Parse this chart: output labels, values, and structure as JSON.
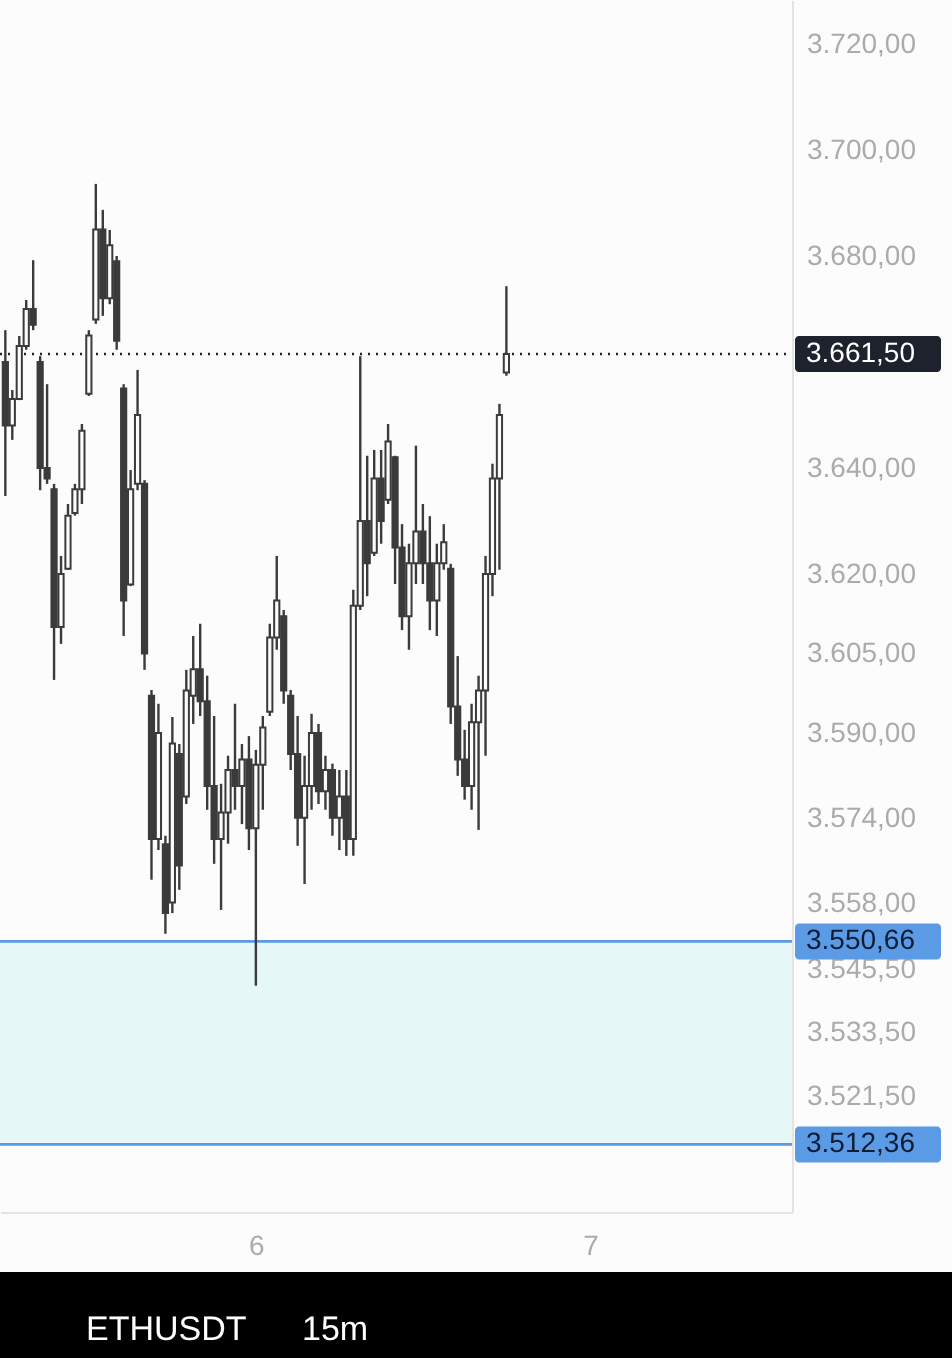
{
  "chart_data": {
    "type": "candlestick",
    "title": "ETHUSDT",
    "subtitle": "15m",
    "color": "#3b3b3b",
    "x": [
      5.25,
      5.2708,
      5.2917,
      5.3125,
      5.3333,
      5.3542,
      5.375,
      5.3958,
      5.4167,
      5.4375,
      5.4583,
      5.4792,
      5.5,
      5.5208,
      5.5417,
      5.5625,
      5.5833,
      5.6042,
      5.625,
      5.6458,
      5.6667,
      5.6875,
      5.7083,
      5.7292,
      5.75,
      5.7708,
      5.7917,
      5.8125,
      5.8333,
      5.8542,
      5.875,
      5.8958,
      5.9167,
      5.9375,
      5.9583,
      5.9792,
      6.0,
      6.0208,
      6.0417,
      6.0625,
      6.0833,
      6.1042,
      6.125,
      6.1458,
      6.1667,
      6.1875,
      6.2083,
      6.2292,
      6.25,
      6.2708,
      6.2917,
      6.3125,
      6.3333,
      6.3542,
      6.375,
      6.3958,
      6.4167,
      6.4375,
      6.4583,
      6.4792,
      6.5,
      6.5208,
      6.5417,
      6.5625,
      6.5833,
      6.6042,
      6.625,
      6.6458,
      6.6667,
      6.6875,
      6.7083,
      6.7292,
      6.75
    ],
    "ohlc": [
      [
        3660,
        3666.0,
        3634.7,
        3648
      ],
      [
        3648,
        3654.7,
        3645.3,
        3653
      ],
      [
        3653,
        3664.9,
        3652.8,
        3663
      ],
      [
        3663,
        3671.7,
        3662.3,
        3670
      ],
      [
        3670,
        3679.2,
        3666.0,
        3667
      ],
      [
        3660,
        3661.1,
        3635.8,
        3640
      ],
      [
        3640,
        3655.8,
        3637.0,
        3638
      ],
      [
        3636,
        3637.0,
        3600.0,
        3610
      ],
      [
        3610,
        3623.4,
        3606.8,
        3620
      ],
      [
        3621,
        3633.2,
        3620.8,
        3631
      ],
      [
        3631.5,
        3637.0,
        3631.0,
        3636
      ],
      [
        3636,
        3648.3,
        3633.2,
        3647
      ],
      [
        3654,
        3666.0,
        3653.6,
        3665
      ],
      [
        3668,
        3693.6,
        3667.2,
        3685
      ],
      [
        3685,
        3688.7,
        3668.7,
        3672
      ],
      [
        3672,
        3684.9,
        3670.9,
        3682
      ],
      [
        3679,
        3680.0,
        3662.3,
        3664
      ],
      [
        3655,
        3655.8,
        3608.3,
        3615
      ],
      [
        3618,
        3639.6,
        3617.7,
        3636
      ],
      [
        3637,
        3658.5,
        3635.8,
        3650
      ],
      [
        3637,
        3637.7,
        3601.9,
        3605
      ],
      [
        3597,
        3598.1,
        3562.3,
        3570
      ],
      [
        3570,
        3595.5,
        3567.9,
        3590
      ],
      [
        3569,
        3570.6,
        3552.1,
        3556
      ],
      [
        3558,
        3593.0,
        3556.0,
        3588
      ],
      [
        3586,
        3587.9,
        3560.4,
        3565
      ],
      [
        3578,
        3601.9,
        3576.6,
        3598
      ],
      [
        3597,
        3608.3,
        3591.7,
        3602
      ],
      [
        3602,
        3610.6,
        3593.2,
        3596
      ],
      [
        3596,
        3600.8,
        3575.5,
        3580
      ],
      [
        3580,
        3593.2,
        3565.3,
        3570
      ],
      [
        3570,
        3580.4,
        3556.6,
        3575
      ],
      [
        3575,
        3585.7,
        3569.1,
        3583
      ],
      [
        3583,
        3595.5,
        3575.5,
        3580
      ],
      [
        3580,
        3587.9,
        3572.8,
        3585
      ],
      [
        3585,
        3589.4,
        3567.9,
        3572
      ],
      [
        3572,
        3586.8,
        3542.3,
        3584
      ],
      [
        3584,
        3593.2,
        3575.5,
        3591
      ],
      [
        3594,
        3610.6,
        3593.2,
        3608
      ],
      [
        3608,
        3623.4,
        3605.7,
        3615
      ],
      [
        3612,
        3613.2,
        3595.5,
        3598
      ],
      [
        3597,
        3598.1,
        3583.0,
        3586
      ],
      [
        3586,
        3593.2,
        3568.7,
        3574
      ],
      [
        3574,
        3585.7,
        3561.5,
        3580
      ],
      [
        3580,
        3593.6,
        3575.5,
        3590
      ],
      [
        3590,
        3591.7,
        3576.6,
        3579
      ],
      [
        3579,
        3585.7,
        3575.5,
        3583
      ],
      [
        3583,
        3584.2,
        3570.6,
        3574
      ],
      [
        3574,
        3583.0,
        3567.9,
        3578
      ],
      [
        3578,
        3583.0,
        3566.8,
        3570
      ],
      [
        3570,
        3617.0,
        3566.8,
        3614
      ],
      [
        3614,
        3661.1,
        3613.2,
        3630
      ],
      [
        3630,
        3642.3,
        3615.8,
        3622
      ],
      [
        3624,
        3643.4,
        3623.4,
        3638
      ],
      [
        3638,
        3643.4,
        3625.7,
        3630
      ],
      [
        3634,
        3648.3,
        3633.2,
        3645
      ],
      [
        3642,
        3642.3,
        3618.1,
        3625
      ],
      [
        3625,
        3629.4,
        3609.4,
        3612
      ],
      [
        3612,
        3625.7,
        3605.7,
        3622
      ],
      [
        3622,
        3644.2,
        3618.1,
        3628
      ],
      [
        3628,
        3633.2,
        3618.1,
        3622
      ],
      [
        3622,
        3630.9,
        3609.4,
        3615
      ],
      [
        3615,
        3625.7,
        3608.3,
        3622
      ],
      [
        3622,
        3629.4,
        3620.8,
        3626
      ],
      [
        3621,
        3621.9,
        3591.7,
        3595
      ],
      [
        3595,
        3604.5,
        3581.9,
        3585
      ],
      [
        3585,
        3590.6,
        3577.4,
        3580
      ],
      [
        3580,
        3595.5,
        3575.5,
        3592
      ],
      [
        3592,
        3600.8,
        3571.7,
        3598
      ],
      [
        3598,
        3623.4,
        3585.7,
        3620
      ],
      [
        3620,
        3640.8,
        3615.8,
        3638
      ],
      [
        3638,
        3652.1,
        3620.8,
        3650
      ],
      [
        3658,
        3674.3,
        3657.4,
        3661.5
      ]
    ],
    "xlim": [
      5.234,
      7.605
    ],
    "xticks": [
      6,
      7
    ],
    "ylim": [
      3499.6,
      3728.3
    ],
    "yticks": [
      {
        "value": 3720,
        "label": "3.720,00"
      },
      {
        "value": 3700,
        "label": "3.700,00"
      },
      {
        "value": 3680,
        "label": "3.680,00"
      },
      {
        "value": 3640,
        "label": "3.640,00"
      },
      {
        "value": 3620,
        "label": "3.620,00"
      },
      {
        "value": 3605,
        "label": "3.605,00"
      },
      {
        "value": 3590,
        "label": "3.590,00"
      },
      {
        "value": 3574,
        "label": "3.574,00"
      },
      {
        "value": 3558,
        "label": "3.558,00"
      },
      {
        "value": 3545.5,
        "label": "3.545,50"
      },
      {
        "value": 3533.5,
        "label": "3.533,50"
      },
      {
        "value": 3521.5,
        "label": "3.521,50"
      }
    ],
    "ref_lines": [
      {
        "axis": "y",
        "value": 3661.5,
        "label": "3.661,50",
        "color": "#1e222d",
        "line_style": "dotted"
      },
      {
        "axis": "y",
        "value": 3550.66,
        "label": "3.550,66",
        "color": "#5b9be6",
        "line_style": "solid"
      },
      {
        "axis": "y",
        "value": 3512.36,
        "label": "3.512,36",
        "color": "#5b9be6",
        "line_style": "solid"
      }
    ],
    "bands": [
      {
        "axis": "y",
        "from": 3512.36,
        "to": 3550.66,
        "color": "#e6f7f7"
      }
    ],
    "grid": false
  }
}
